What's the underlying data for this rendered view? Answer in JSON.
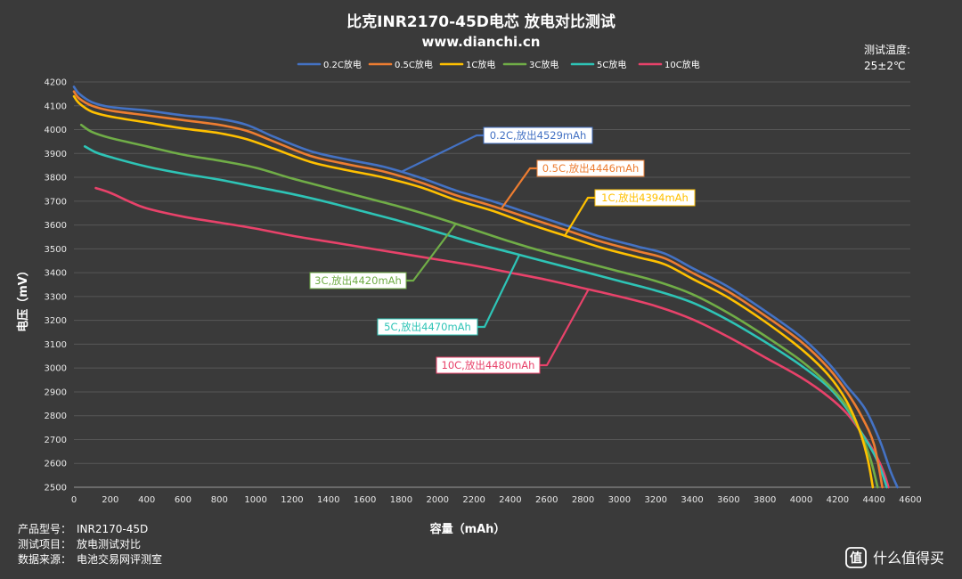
{
  "chart_data": {
    "type": "line",
    "title": "比克INR2170-45D电芯 放电对比测试",
    "subtitle": "www.dianchi.cn",
    "xlabel": "容量（mAh）",
    "ylabel": "电压（mV）",
    "xlim": [
      0,
      4600
    ],
    "ylim": [
      2500,
      4200
    ],
    "x_ticks": [
      "0",
      "200",
      "400",
      "600",
      "800",
      "1000",
      "1200",
      "1400",
      "1600",
      "1800",
      "2000",
      "2200",
      "2400",
      "2600",
      "2800",
      "3000",
      "3200",
      "3400",
      "3600",
      "3800",
      "4000",
      "4200",
      "4400",
      "4600"
    ],
    "y_ticks": [
      "2500",
      "2600",
      "2700",
      "2800",
      "2900",
      "3000",
      "3100",
      "3200",
      "3300",
      "3400",
      "3500",
      "3600",
      "3700",
      "3800",
      "3900",
      "4000",
      "4100",
      "4200"
    ],
    "grid": "horizontal",
    "legend_position": "top",
    "temperature_note": {
      "label": "测试温度:",
      "value": "25±2℃"
    },
    "series": [
      {
        "name": "0.2C放电",
        "color": "#4472c4",
        "annotation": "0.2C,放出4529mAh",
        "points": [
          [
            0,
            4180
          ],
          [
            30,
            4150
          ],
          [
            100,
            4115
          ],
          [
            200,
            4095
          ],
          [
            400,
            4080
          ],
          [
            600,
            4060
          ],
          [
            800,
            4045
          ],
          [
            950,
            4020
          ],
          [
            1100,
            3970
          ],
          [
            1300,
            3910
          ],
          [
            1500,
            3875
          ],
          [
            1700,
            3845
          ],
          [
            1900,
            3800
          ],
          [
            2100,
            3745
          ],
          [
            2300,
            3700
          ],
          [
            2500,
            3650
          ],
          [
            2700,
            3600
          ],
          [
            2900,
            3550
          ],
          [
            3100,
            3510
          ],
          [
            3250,
            3480
          ],
          [
            3400,
            3420
          ],
          [
            3600,
            3340
          ],
          [
            3800,
            3240
          ],
          [
            4000,
            3130
          ],
          [
            4150,
            3020
          ],
          [
            4250,
            2925
          ],
          [
            4350,
            2830
          ],
          [
            4430,
            2700
          ],
          [
            4490,
            2570
          ],
          [
            4529,
            2500
          ]
        ]
      },
      {
        "name": "0.5C放电",
        "color": "#ed7d31",
        "annotation": "0.5C,放出4446mAh",
        "points": [
          [
            0,
            4160
          ],
          [
            30,
            4130
          ],
          [
            100,
            4100
          ],
          [
            200,
            4080
          ],
          [
            400,
            4060
          ],
          [
            600,
            4040
          ],
          [
            800,
            4020
          ],
          [
            950,
            3995
          ],
          [
            1100,
            3950
          ],
          [
            1300,
            3890
          ],
          [
            1500,
            3855
          ],
          [
            1700,
            3825
          ],
          [
            1900,
            3780
          ],
          [
            2100,
            3725
          ],
          [
            2300,
            3680
          ],
          [
            2500,
            3630
          ],
          [
            2700,
            3580
          ],
          [
            2900,
            3530
          ],
          [
            3100,
            3490
          ],
          [
            3250,
            3460
          ],
          [
            3400,
            3400
          ],
          [
            3600,
            3320
          ],
          [
            3800,
            3220
          ],
          [
            4000,
            3110
          ],
          [
            4150,
            3000
          ],
          [
            4250,
            2900
          ],
          [
            4330,
            2800
          ],
          [
            4400,
            2680
          ],
          [
            4446,
            2500
          ]
        ]
      },
      {
        "name": "1C放电",
        "color": "#ffc000",
        "annotation": "1C,放出4394mAh",
        "points": [
          [
            0,
            4140
          ],
          [
            30,
            4110
          ],
          [
            100,
            4075
          ],
          [
            200,
            4055
          ],
          [
            400,
            4030
          ],
          [
            600,
            4005
          ],
          [
            800,
            3985
          ],
          [
            950,
            3960
          ],
          [
            1100,
            3920
          ],
          [
            1300,
            3865
          ],
          [
            1500,
            3830
          ],
          [
            1700,
            3800
          ],
          [
            1900,
            3760
          ],
          [
            2100,
            3705
          ],
          [
            2300,
            3660
          ],
          [
            2500,
            3605
          ],
          [
            2700,
            3555
          ],
          [
            2900,
            3505
          ],
          [
            3100,
            3465
          ],
          [
            3250,
            3435
          ],
          [
            3400,
            3375
          ],
          [
            3600,
            3295
          ],
          [
            3800,
            3195
          ],
          [
            4000,
            3080
          ],
          [
            4150,
            2970
          ],
          [
            4250,
            2860
          ],
          [
            4320,
            2740
          ],
          [
            4365,
            2620
          ],
          [
            4394,
            2500
          ]
        ]
      },
      {
        "name": "3C放电",
        "color": "#70ad47",
        "annotation": "3C,放出4420mAh",
        "points": [
          [
            40,
            4020
          ],
          [
            100,
            3990
          ],
          [
            200,
            3965
          ],
          [
            400,
            3930
          ],
          [
            600,
            3895
          ],
          [
            800,
            3870
          ],
          [
            1000,
            3840
          ],
          [
            1200,
            3795
          ],
          [
            1400,
            3755
          ],
          [
            1600,
            3715
          ],
          [
            1800,
            3675
          ],
          [
            2000,
            3630
          ],
          [
            2200,
            3580
          ],
          [
            2400,
            3530
          ],
          [
            2600,
            3485
          ],
          [
            2800,
            3445
          ],
          [
            3000,
            3405
          ],
          [
            3200,
            3365
          ],
          [
            3400,
            3310
          ],
          [
            3600,
            3230
          ],
          [
            3800,
            3135
          ],
          [
            4000,
            3030
          ],
          [
            4150,
            2930
          ],
          [
            4250,
            2840
          ],
          [
            4320,
            2740
          ],
          [
            4380,
            2620
          ],
          [
            4420,
            2500
          ]
        ]
      },
      {
        "name": "5C放电",
        "color": "#2ec4b6",
        "annotation": "5C,放出4470mAh",
        "points": [
          [
            60,
            3930
          ],
          [
            120,
            3905
          ],
          [
            200,
            3885
          ],
          [
            400,
            3845
          ],
          [
            600,
            3815
          ],
          [
            800,
            3790
          ],
          [
            1000,
            3760
          ],
          [
            1200,
            3730
          ],
          [
            1400,
            3695
          ],
          [
            1600,
            3655
          ],
          [
            1800,
            3615
          ],
          [
            2000,
            3570
          ],
          [
            2200,
            3525
          ],
          [
            2400,
            3485
          ],
          [
            2600,
            3445
          ],
          [
            2800,
            3405
          ],
          [
            3000,
            3365
          ],
          [
            3200,
            3325
          ],
          [
            3400,
            3275
          ],
          [
            3600,
            3200
          ],
          [
            3800,
            3110
          ],
          [
            4000,
            3010
          ],
          [
            4150,
            2920
          ],
          [
            4250,
            2830
          ],
          [
            4330,
            2730
          ],
          [
            4400,
            2640
          ],
          [
            4440,
            2570
          ],
          [
            4470,
            2500
          ]
        ]
      },
      {
        "name": "10C放电",
        "color": "#e8426a",
        "annotation": "10C,放出4480mAh",
        "points": [
          [
            120,
            3755
          ],
          [
            200,
            3735
          ],
          [
            300,
            3700
          ],
          [
            400,
            3670
          ],
          [
            600,
            3635
          ],
          [
            800,
            3610
          ],
          [
            1000,
            3585
          ],
          [
            1200,
            3555
          ],
          [
            1400,
            3530
          ],
          [
            1600,
            3505
          ],
          [
            1800,
            3480
          ],
          [
            2000,
            3455
          ],
          [
            2200,
            3430
          ],
          [
            2400,
            3400
          ],
          [
            2600,
            3370
          ],
          [
            2800,
            3335
          ],
          [
            3000,
            3300
          ],
          [
            3200,
            3260
          ],
          [
            3400,
            3205
          ],
          [
            3600,
            3130
          ],
          [
            3800,
            3045
          ],
          [
            4000,
            2960
          ],
          [
            4150,
            2880
          ],
          [
            4250,
            2810
          ],
          [
            4330,
            2730
          ],
          [
            4400,
            2650
          ],
          [
            4450,
            2570
          ],
          [
            4480,
            2500
          ]
        ]
      }
    ]
  },
  "footer": {
    "model_label": "产品型号：",
    "model_value": "INR2170-45D",
    "item_label": "测试项目：",
    "item_value": "放电测试对比",
    "source_label": "数据来源：",
    "source_value": "电池交易网评测室"
  },
  "watermark": {
    "icon": "smzdm-logo-icon",
    "text": "什么值得买"
  }
}
